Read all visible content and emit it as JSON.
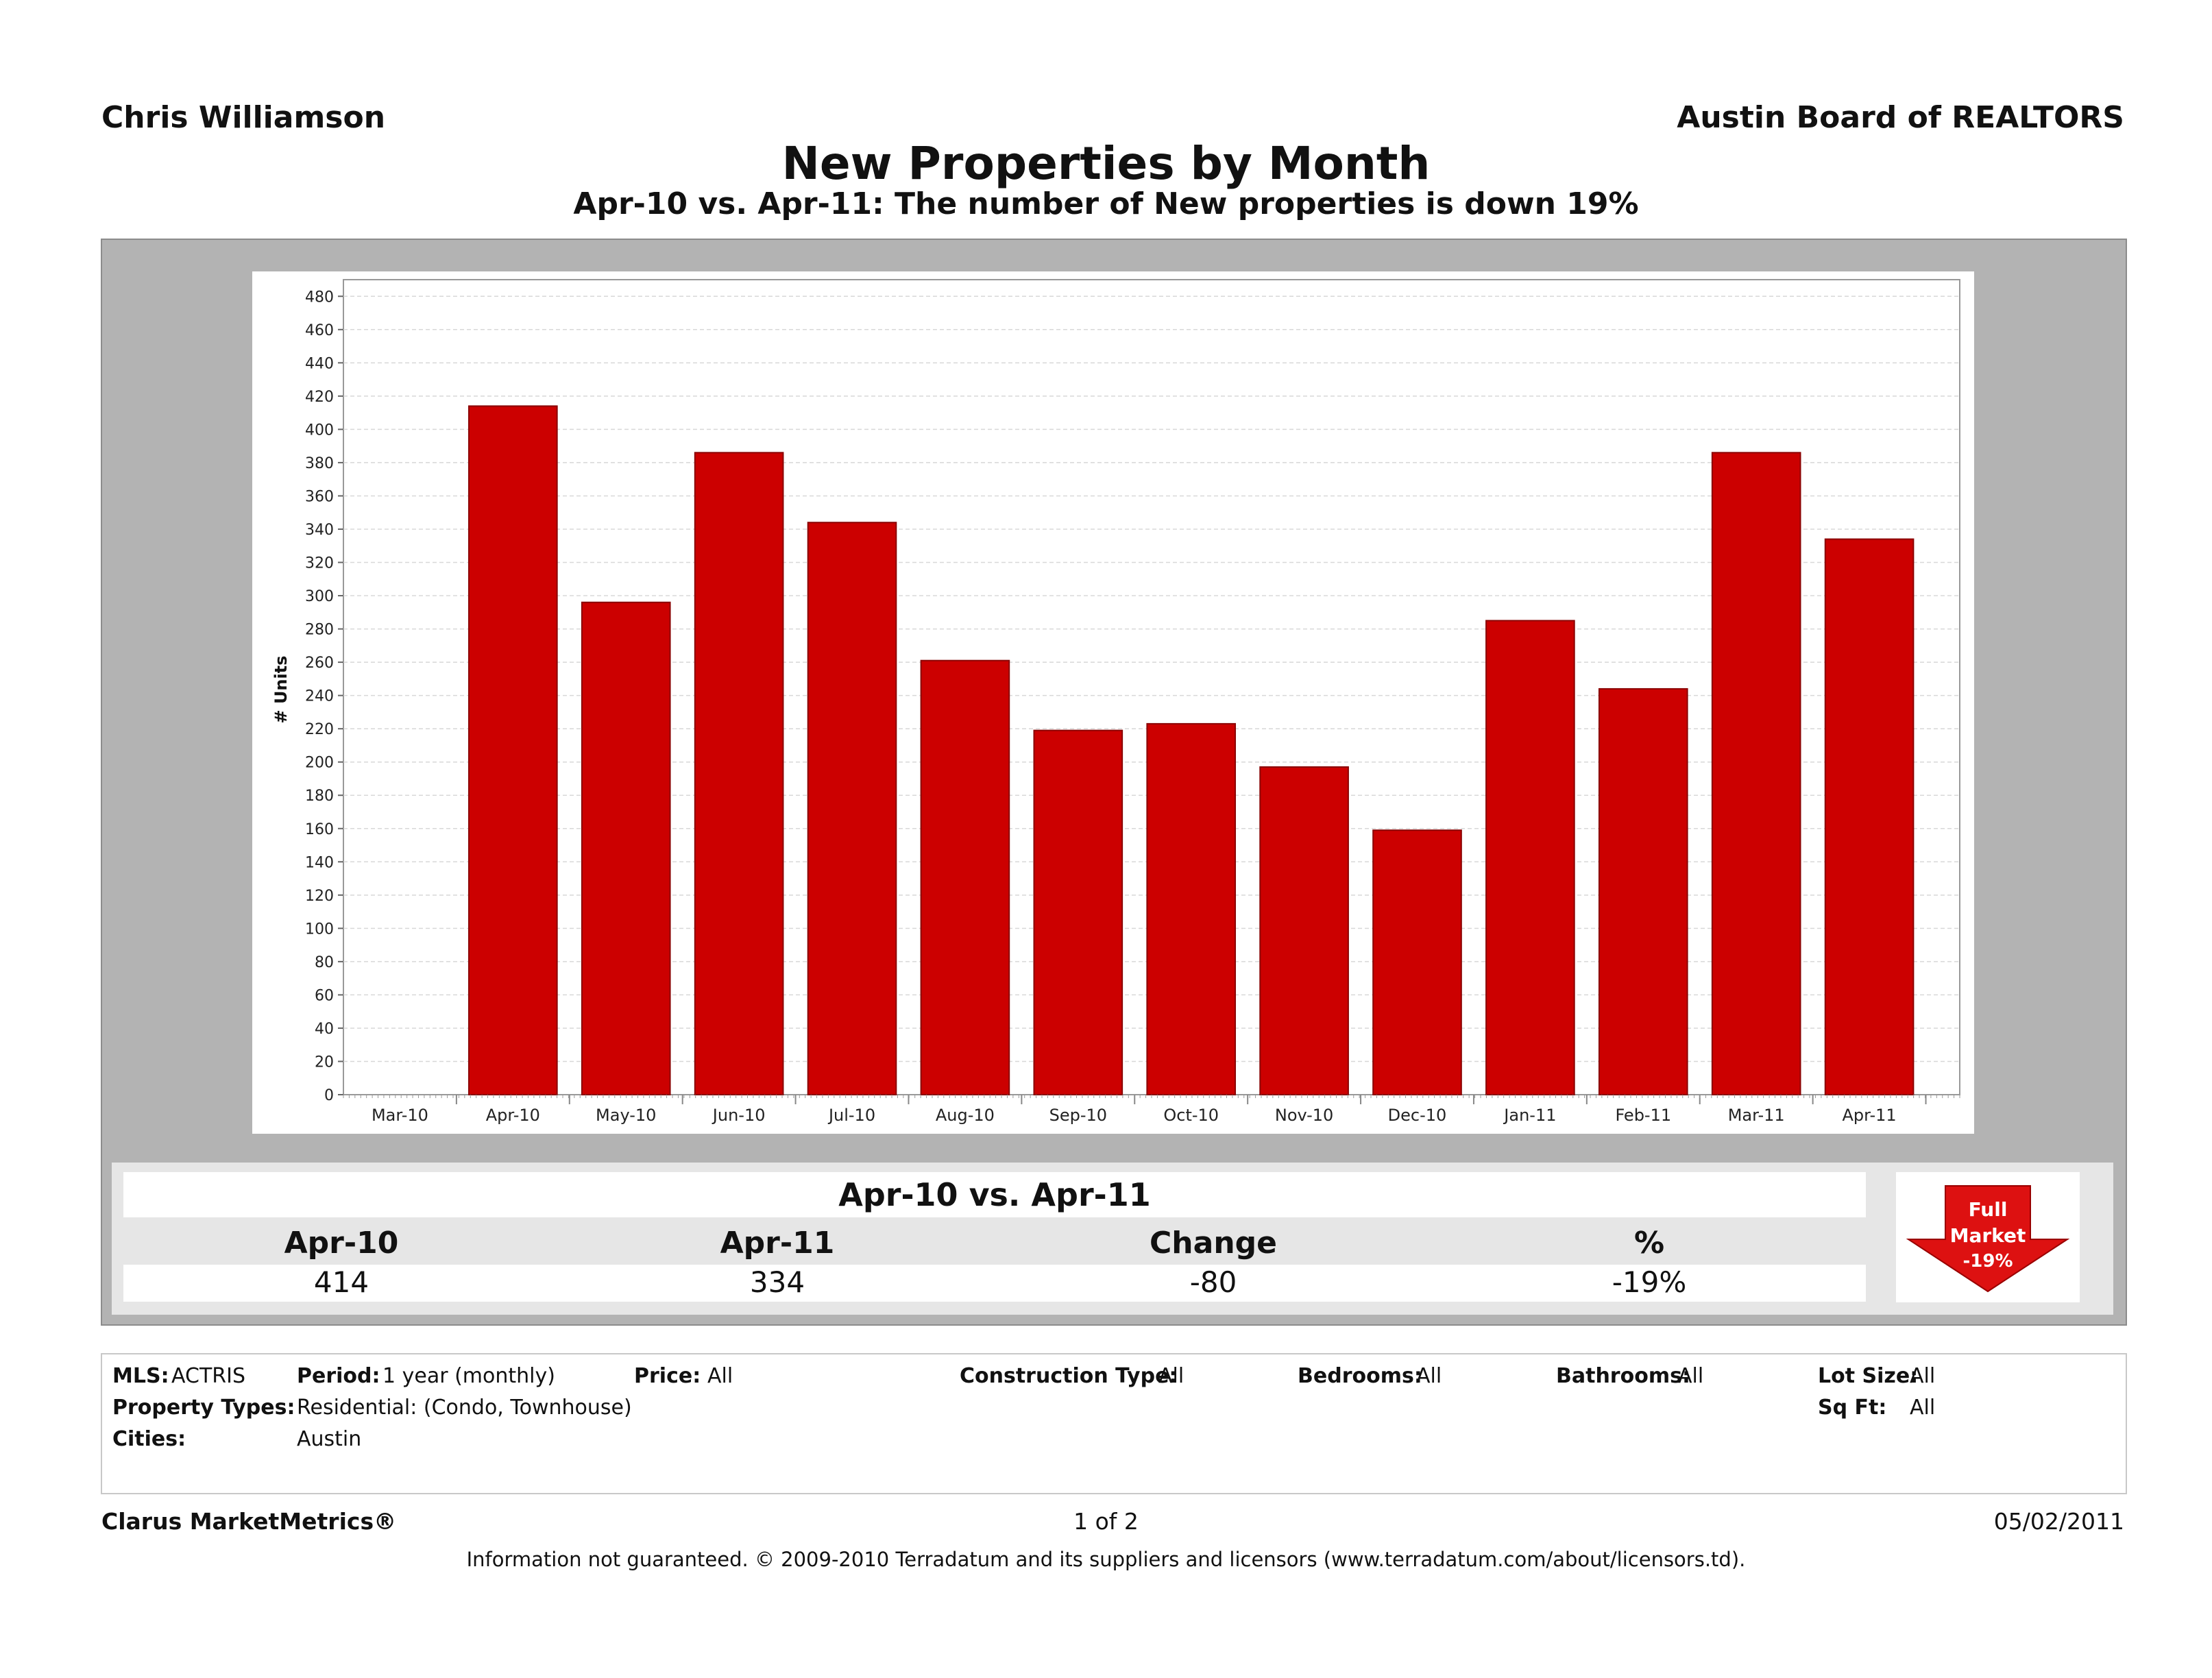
{
  "header": {
    "agent": "Chris Williamson",
    "board": "Austin Board of REALTORS",
    "title": "New Properties by Month",
    "subtitle": "Apr-10 vs. Apr-11: The number of New properties is down 19%"
  },
  "colors": {
    "bar": "#cc0000",
    "panel": "#b3b3b3",
    "badge": "#dd1111"
  },
  "chart_data": {
    "type": "bar",
    "title": "New Properties by Month",
    "ylabel": "# Units",
    "xlabel": "",
    "ylim": [
      0,
      490
    ],
    "yticks": [
      0,
      20,
      40,
      60,
      80,
      100,
      120,
      140,
      160,
      180,
      200,
      220,
      240,
      260,
      280,
      300,
      320,
      340,
      360,
      380,
      400,
      420,
      440,
      460,
      480
    ],
    "categories": [
      "Mar-10",
      "Apr-10",
      "May-10",
      "Jun-10",
      "Jul-10",
      "Aug-10",
      "Sep-10",
      "Oct-10",
      "Nov-10",
      "Dec-10",
      "Jan-11",
      "Feb-11",
      "Mar-11",
      "Apr-11"
    ],
    "values": [
      null,
      414,
      296,
      386,
      344,
      261,
      219,
      223,
      197,
      159,
      285,
      244,
      386,
      334
    ],
    "grid": true,
    "legend": "none"
  },
  "summary": {
    "title": "Apr-10 vs. Apr-11",
    "columns": [
      {
        "label": "Apr-10",
        "value": "414"
      },
      {
        "label": "Apr-11",
        "value": "334"
      },
      {
        "label": "Change",
        "value": "-80"
      },
      {
        "label": "%",
        "value": "-19%"
      }
    ],
    "badge": {
      "line1": "Full",
      "line2": "Market",
      "line3": "-19%"
    }
  },
  "filters": {
    "mls": {
      "label": "MLS:",
      "value": "ACTRIS"
    },
    "period": {
      "label": "Period:",
      "value": "1 year (monthly)"
    },
    "price": {
      "label": "Price:",
      "value": "All"
    },
    "construction": {
      "label": "Construction Type:",
      "value": "All"
    },
    "bedrooms": {
      "label": "Bedrooms:",
      "value": "All"
    },
    "bathrooms": {
      "label": "Bathrooms:",
      "value": "All"
    },
    "lot_size": {
      "label": "Lot Size:",
      "value": "All"
    },
    "property_types": {
      "label": "Property Types:",
      "value": "Residential: (Condo, Townhouse)"
    },
    "sq_ft": {
      "label": "Sq Ft:",
      "value": "All"
    },
    "cities": {
      "label": "Cities:",
      "value": "Austin"
    }
  },
  "footer": {
    "brand": "Clarus MarketMetrics®",
    "page": "1 of 2",
    "date": "05/02/2011",
    "disclaimer": "Information not guaranteed.  © 2009-2010 Terradatum and its suppliers and licensors (www.terradatum.com/about/licensors.td)."
  }
}
